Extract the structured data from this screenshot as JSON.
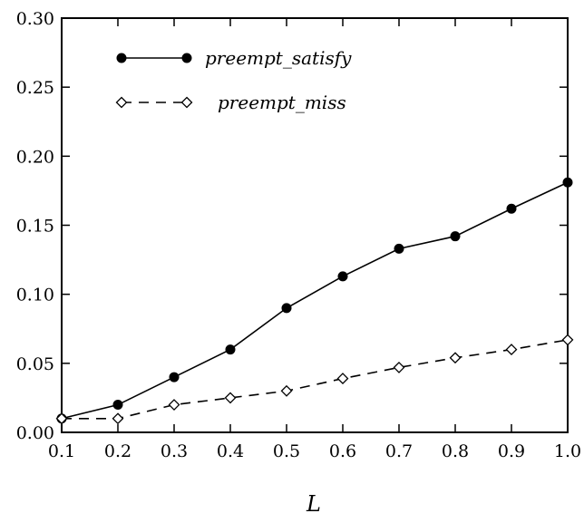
{
  "chart_data": {
    "type": "line",
    "title": "",
    "xlabel": "L",
    "ylabel": "",
    "xlim": [
      0.1,
      1.0
    ],
    "ylim": [
      0.0,
      0.3
    ],
    "x": [
      0.1,
      0.2,
      0.3,
      0.4,
      0.5,
      0.6,
      0.7,
      0.8,
      0.9,
      1.0
    ],
    "x_ticks": [
      "0.1",
      "0.2",
      "0.3",
      "0.4",
      "0.5",
      "0.6",
      "0.7",
      "0.8",
      "0.9",
      "1.0"
    ],
    "y_ticks": [
      "0.00",
      "0.05",
      "0.10",
      "0.15",
      "0.20",
      "0.25",
      "0.30"
    ],
    "grid": false,
    "legend_position": "top-left",
    "series": [
      {
        "name": "preempt_satisfy",
        "values": [
          0.01,
          0.02,
          0.04,
          0.06,
          0.09,
          0.113,
          0.133,
          0.142,
          0.162,
          0.181
        ],
        "marker": "filled-circle",
        "line_style": "solid",
        "color": "#000000"
      },
      {
        "name": "preempt_miss",
        "values": [
          0.01,
          0.01,
          0.02,
          0.025,
          0.03,
          0.039,
          0.047,
          0.054,
          0.06,
          0.067
        ],
        "marker": "open-diamond",
        "line_style": "dashed",
        "color": "#000000"
      }
    ]
  }
}
